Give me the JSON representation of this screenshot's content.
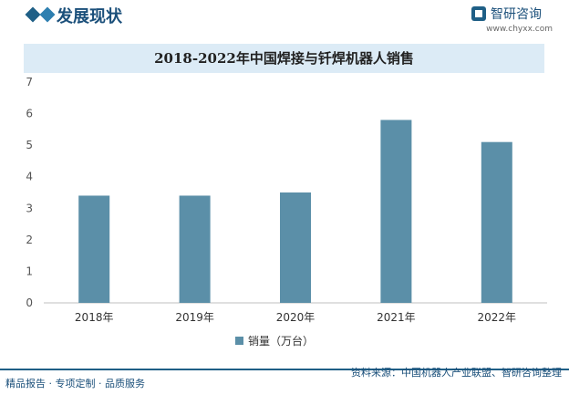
{
  "header": {
    "section_title": "发展现状",
    "logo_text": "智研咨询",
    "logo_url": "www.chyxx.com"
  },
  "chart_data": {
    "type": "bar",
    "title": "2018-2022年中国焊接与钎焊机器人销售",
    "categories": [
      "2018年",
      "2019年",
      "2020年",
      "2021年",
      "2022年"
    ],
    "series": [
      {
        "name": "销量（万台）",
        "values": [
          3.4,
          3.4,
          3.5,
          5.8,
          5.1
        ],
        "color": "#5b8fa8"
      }
    ],
    "yticks": [
      0,
      1,
      2,
      3,
      4,
      5,
      6,
      7
    ],
    "ylim": [
      0,
      7
    ],
    "legend_position": "bottom",
    "grid": false
  },
  "footer": {
    "left": "精品报告 · 专项定制 · 品质服务",
    "right": "资料来源：中国机器人产业联盟、智研咨询整理"
  }
}
